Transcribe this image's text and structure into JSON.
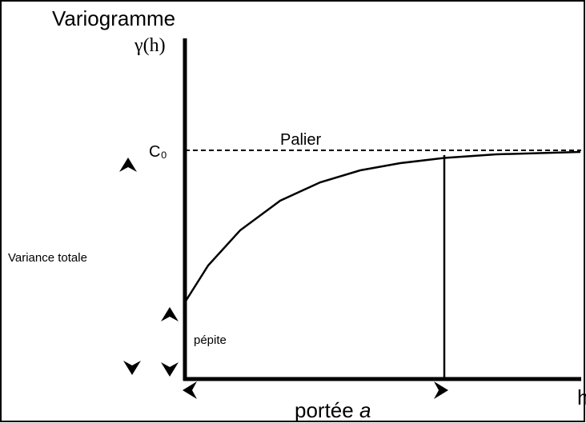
{
  "title": "Variogramme",
  "y_axis_label": "γ(h)",
  "x_axis_label": "h",
  "sill_value_label": "C₀",
  "sill_label": "Palier",
  "total_variance_label": "Variance totale",
  "nugget_label": "pépite",
  "range_label": {
    "text": "portée",
    "variable": "a"
  }
}
